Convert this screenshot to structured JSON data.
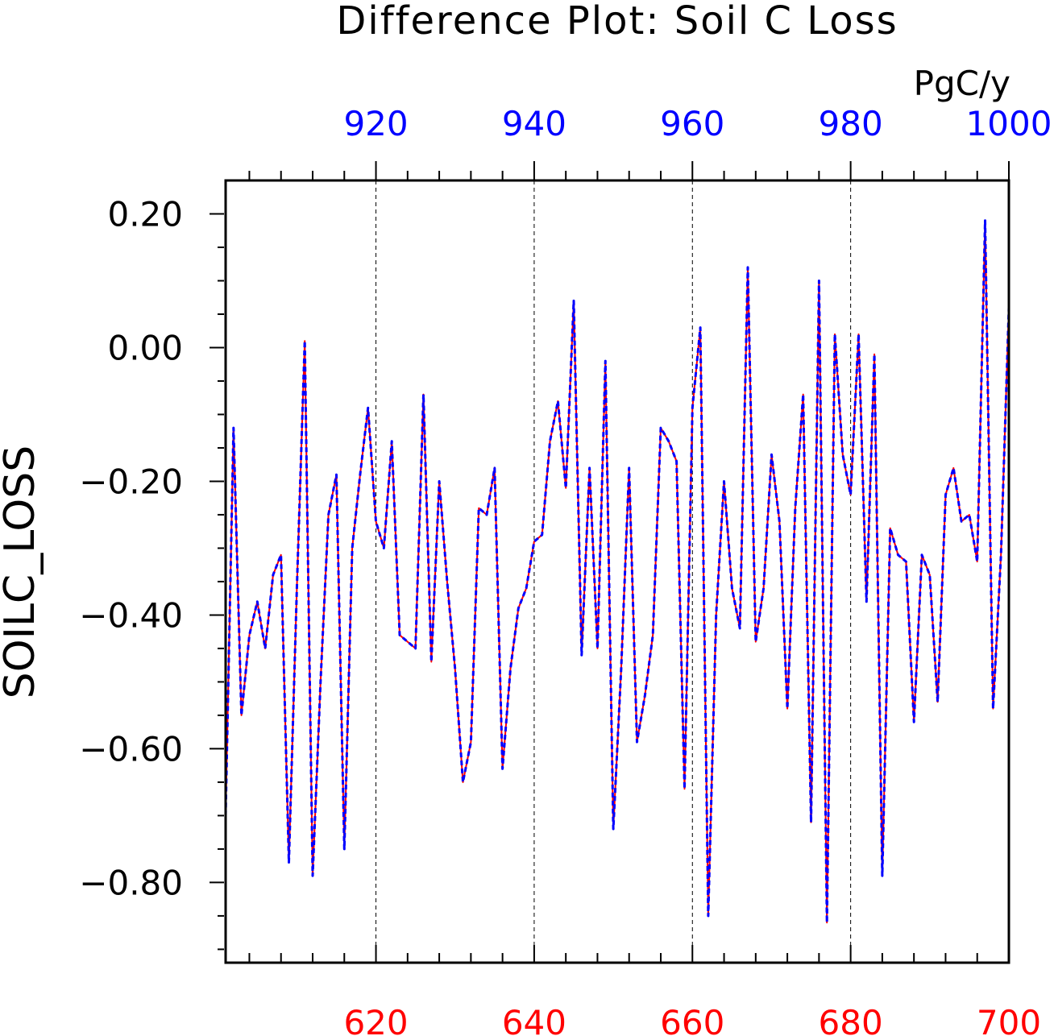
{
  "chart_data": {
    "type": "line",
    "title": "Difference Plot: Soil C Loss",
    "units": "PgC/y",
    "ylabel": "SOILC_LOSS",
    "ylim": [
      -0.92,
      0.25
    ],
    "yticks": [
      0.2,
      0.0,
      -0.2,
      -0.4,
      -0.6,
      -0.8
    ],
    "ytick_labels": [
      "0.20",
      "0.00",
      "−0.20",
      "−0.40",
      "−0.60",
      "−0.80"
    ],
    "x_bottom": {
      "range": [
        601,
        700
      ],
      "ticks": [
        620,
        640,
        660,
        680,
        700
      ],
      "tick_labels": [
        "620",
        "640",
        "660",
        "680",
        "700"
      ],
      "color": "#ff0000"
    },
    "x_top": {
      "range": [
        901,
        1000
      ],
      "ticks": [
        920,
        940,
        960,
        980,
        1000
      ],
      "tick_labels": [
        "920",
        "940",
        "960",
        "980",
        "1000"
      ],
      "color": "#0000ff"
    },
    "grid": "vertical dashed at major ticks",
    "series": [
      {
        "axis": "bottom",
        "color": "#ff0000",
        "style": "solid",
        "x": [
          601,
          602,
          603,
          604,
          605,
          606,
          607,
          608,
          609,
          610,
          611,
          612,
          613,
          614,
          615,
          616,
          617,
          618,
          619,
          620,
          621,
          622,
          623,
          624,
          625,
          626,
          627,
          628,
          629,
          630,
          631,
          632,
          633,
          634,
          635,
          636,
          637,
          638,
          639,
          640,
          641,
          642,
          643,
          644,
          645,
          646,
          647,
          648,
          649,
          650,
          651,
          652,
          653,
          654,
          655,
          656,
          657,
          658,
          659,
          660,
          661,
          662,
          663,
          664,
          665,
          666,
          667,
          668,
          669,
          670,
          671,
          672,
          673,
          674,
          675,
          676,
          677,
          678,
          679,
          680,
          681,
          682,
          683,
          684,
          685,
          686,
          687,
          688,
          689,
          690,
          691,
          692,
          693,
          694,
          695,
          696,
          697,
          698,
          699,
          700
        ],
        "y": [
          -0.7,
          -0.12,
          -0.55,
          -0.43,
          -0.38,
          -0.45,
          -0.34,
          -0.31,
          -0.77,
          -0.36,
          0.01,
          -0.79,
          -0.5,
          -0.25,
          -0.19,
          -0.75,
          -0.3,
          -0.19,
          -0.09,
          -0.26,
          -0.3,
          -0.14,
          -0.43,
          -0.44,
          -0.45,
          -0.07,
          -0.47,
          -0.2,
          -0.35,
          -0.48,
          -0.65,
          -0.59,
          -0.24,
          -0.25,
          -0.18,
          -0.63,
          -0.48,
          -0.39,
          -0.36,
          -0.29,
          -0.28,
          -0.14,
          -0.08,
          -0.21,
          0.07,
          -0.46,
          -0.18,
          -0.45,
          -0.02,
          -0.72,
          -0.48,
          -0.18,
          -0.59,
          -0.52,
          -0.43,
          -0.12,
          -0.14,
          -0.17,
          -0.66,
          -0.09,
          0.03,
          -0.85,
          -0.4,
          -0.2,
          -0.36,
          -0.42,
          0.12,
          -0.44,
          -0.36,
          -0.16,
          -0.26,
          -0.54,
          -0.24,
          -0.07,
          -0.71,
          0.1,
          -0.86,
          0.02,
          -0.16,
          -0.22,
          0.02,
          -0.38,
          -0.01,
          -0.79,
          -0.27,
          -0.31,
          -0.32,
          -0.56,
          -0.31,
          -0.34,
          -0.53,
          -0.22,
          -0.18,
          -0.26,
          -0.25,
          -0.32,
          0.19,
          -0.54,
          -0.31,
          0.06
        ]
      },
      {
        "axis": "top",
        "color": "#0000ff",
        "style": "dashed",
        "x": [
          901,
          902,
          903,
          904,
          905,
          906,
          907,
          908,
          909,
          910,
          911,
          912,
          913,
          914,
          915,
          916,
          917,
          918,
          919,
          920,
          921,
          922,
          923,
          924,
          925,
          926,
          927,
          928,
          929,
          930,
          931,
          932,
          933,
          934,
          935,
          936,
          937,
          938,
          939,
          940,
          941,
          942,
          943,
          944,
          945,
          946,
          947,
          948,
          949,
          950,
          951,
          952,
          953,
          954,
          955,
          956,
          957,
          958,
          959,
          960,
          961,
          962,
          963,
          964,
          965,
          966,
          967,
          968,
          969,
          970,
          971,
          972,
          973,
          974,
          975,
          976,
          977,
          978,
          979,
          980,
          981,
          982,
          983,
          984,
          985,
          986,
          987,
          988,
          989,
          990,
          991,
          992,
          993,
          994,
          995,
          996,
          997,
          998,
          999,
          1000
        ],
        "y": [
          -0.7,
          -0.12,
          -0.55,
          -0.43,
          -0.38,
          -0.45,
          -0.34,
          -0.31,
          -0.77,
          -0.36,
          0.01,
          -0.79,
          -0.5,
          -0.25,
          -0.19,
          -0.75,
          -0.3,
          -0.19,
          -0.09,
          -0.26,
          -0.3,
          -0.14,
          -0.43,
          -0.44,
          -0.45,
          -0.07,
          -0.47,
          -0.2,
          -0.35,
          -0.48,
          -0.65,
          -0.59,
          -0.24,
          -0.25,
          -0.18,
          -0.63,
          -0.48,
          -0.39,
          -0.36,
          -0.29,
          -0.28,
          -0.14,
          -0.08,
          -0.21,
          0.07,
          -0.46,
          -0.18,
          -0.45,
          -0.02,
          -0.72,
          -0.48,
          -0.18,
          -0.59,
          -0.52,
          -0.43,
          -0.12,
          -0.14,
          -0.17,
          -0.66,
          -0.09,
          0.03,
          -0.85,
          -0.4,
          -0.2,
          -0.36,
          -0.42,
          0.12,
          -0.44,
          -0.36,
          -0.16,
          -0.26,
          -0.54,
          -0.24,
          -0.07,
          -0.71,
          0.1,
          -0.86,
          0.02,
          -0.16,
          -0.22,
          0.02,
          -0.38,
          -0.01,
          -0.79,
          -0.27,
          -0.31,
          -0.32,
          -0.56,
          -0.31,
          -0.34,
          -0.53,
          -0.22,
          -0.18,
          -0.26,
          -0.25,
          -0.32,
          0.19,
          -0.54,
          -0.31,
          0.06
        ]
      }
    ]
  }
}
